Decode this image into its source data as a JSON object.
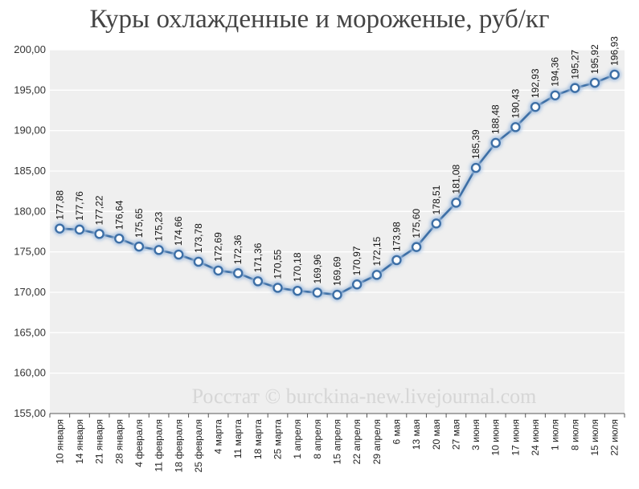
{
  "chart_data": {
    "type": "line",
    "title": "Куры охлажденные и мороженые, руб/кг",
    "xlabel": "",
    "ylabel": "",
    "ylim": [
      155,
      200
    ],
    "y_ticks": [
      "155,00",
      "160,00",
      "165,00",
      "170,00",
      "175,00",
      "180,00",
      "185,00",
      "190,00",
      "195,00",
      "200,00"
    ],
    "grid": true,
    "categories": [
      "10 января",
      "14 января",
      "21 января",
      "28 января",
      "4 февраля",
      "11 февраля",
      "18 февраля",
      "25 февраля",
      "4 марта",
      "11 марта",
      "18 марта",
      "25 марта",
      "1 апреля",
      "8 апреля",
      "15 апреля",
      "22 апреля",
      "29 апреля",
      "6 мая",
      "13 мая",
      "20 мая",
      "27 мая",
      "3 июня",
      "10 июня",
      "17 июня",
      "24 июня",
      "1 июля",
      "8 июля",
      "15 июля",
      "22 июля"
    ],
    "values": [
      177.88,
      177.76,
      177.22,
      176.64,
      175.65,
      175.23,
      174.66,
      173.78,
      172.69,
      172.36,
      171.36,
      170.55,
      170.18,
      169.96,
      169.69,
      170.97,
      172.15,
      173.98,
      175.6,
      178.51,
      181.08,
      185.39,
      188.48,
      190.43,
      192.93,
      194.36,
      195.27,
      195.92,
      196.93
    ],
    "value_labels": [
      "177,88",
      "177,76",
      "177,22",
      "176,64",
      "175,65",
      "175,23",
      "174,66",
      "173,78",
      "172,69",
      "172,36",
      "171,36",
      "170,55",
      "170,18",
      "169,96",
      "169,69",
      "170,97",
      "172,15",
      "173,98",
      "175,60",
      "178,51",
      "181,08",
      "185,39",
      "188,48",
      "190,43",
      "192,93",
      "194,36",
      "195,27",
      "195,92",
      "196,93"
    ],
    "watermark": "Росстат © burckina-new.livejournal.com",
    "colors": {
      "line": "#3d6fa6",
      "marker_fill": "#ffffff",
      "plot_bg": "#efefef",
      "grid": "#ffffff"
    }
  }
}
